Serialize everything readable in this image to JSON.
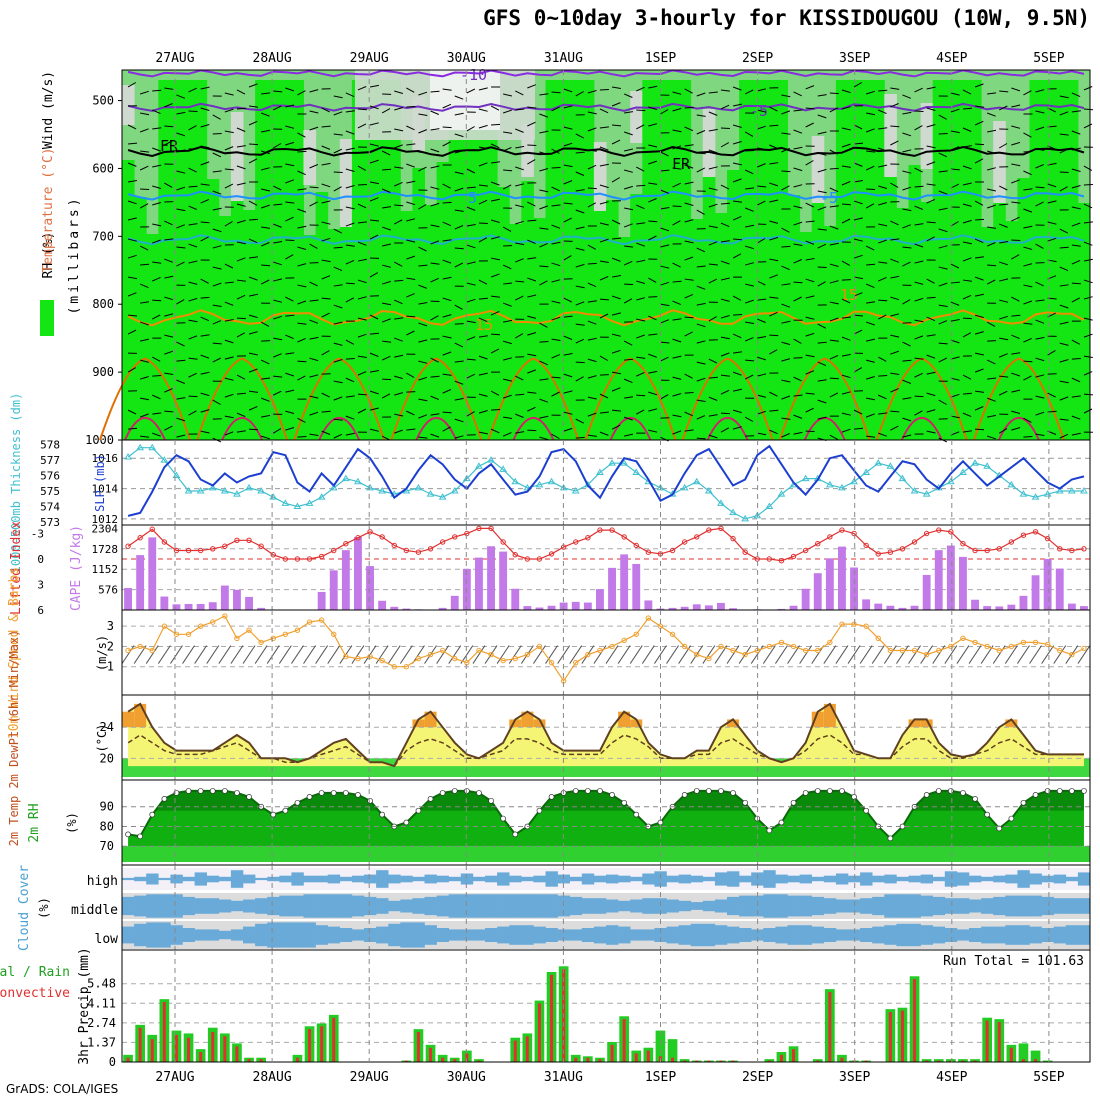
{
  "title": "GFS 0~10day 3-hourly for KISSIDOUGOU (10W, 9.5N)",
  "credit": "GrADS: COLA/IGES",
  "dates": [
    "27AUG",
    "28AUG",
    "29AUG",
    "30AUG",
    "31AUG",
    "1SEP",
    "2SEP",
    "3SEP",
    "4SEP",
    "5SEP"
  ],
  "colors": {
    "rh_light": "#cfd9cf",
    "rh_mid": "#7fd77f",
    "rh_green": "#14e614",
    "wind_lines": "#000000",
    "thickness": "#40c0d0",
    "slp": "#1c3fd0",
    "lifted": "#e03030",
    "cape": "#c27ae8",
    "wind10": "#f0a030",
    "temp_fill": "#f5f575",
    "temp_hot": "#f0a030",
    "dew_line": "#604020",
    "rh2m_dark": "#0a8a0a",
    "rh2m_mid": "#10b010",
    "rh2m_light": "#2fd02f",
    "cloud": "#6aaad8",
    "cloud_bg": "#dcdcdc",
    "total_rain": "#22cc22",
    "conv_rain": "#e03030"
  },
  "panels": {
    "upper": {
      "ylabel_parts": [
        "RH (%)",
        "Temperature (°C)",
        "Wind (m/s)"
      ],
      "ylabel_unit": "(millibars)",
      "yticks": [
        "500",
        "600",
        "700",
        "800",
        "900",
        "1000"
      ],
      "contour_labels": [
        "-10",
        "-5",
        "FR",
        "FR",
        "5",
        "-5",
        "15",
        "15"
      ]
    },
    "thickness_slp": {
      "ylabel_left": "1000-500mb Thickness (dm)",
      "ylabel_right": "SLP (mb)",
      "left_ticks": [
        "578",
        "577",
        "576",
        "575",
        "574",
        "573"
      ],
      "right_ticks": [
        "1016",
        "1014",
        "1012"
      ]
    },
    "li_cape": {
      "ylabel_left": "Lifted Index",
      "ylabel_right": "CAPE (J/kg)",
      "li_ticks": [
        "-3",
        "0",
        "3",
        "6"
      ],
      "cape_ticks": [
        "2304",
        "1728",
        "1152",
        "576"
      ]
    },
    "wind10": {
      "ylabel": "10m Wind Speed & Barbs",
      "unit": "(m/s)",
      "yticks": [
        "3",
        "2",
        "1"
      ]
    },
    "temp2m": {
      "ylabel": "2m Temp 2m DewPt (6hr Min/Max)",
      "unit": "(°C)",
      "yticks": [
        "24",
        "20"
      ]
    },
    "rh2m": {
      "ylabel": "2m RH",
      "unit": "(%)",
      "yticks": [
        "90",
        "80",
        "70"
      ]
    },
    "cloud": {
      "ylabel": "Cloud Cover",
      "unit": "(%)",
      "levels": [
        "high",
        "middle",
        "low"
      ]
    },
    "precip": {
      "ylabel": "3hr Precip (mm)",
      "legend_total": "Total / Rain",
      "legend_conv": "Convective",
      "yticks": [
        "5.48",
        "4.11",
        "2.74",
        "1.37",
        "0"
      ],
      "run_total": "Run Total = 101.63"
    }
  },
  "chart_data": {
    "type": "meteogram",
    "x_dates": [
      "27AUG",
      "28AUG",
      "29AUG",
      "30AUG",
      "31AUG",
      "1SEP",
      "2SEP",
      "3SEP",
      "4SEP",
      "5SEP"
    ],
    "slp_mb": [
      1012.2,
      1012.4,
      1013.8,
      1015.4,
      1016.2,
      1015.8,
      1014.6,
      1014.2,
      1015.0,
      1014.4,
      1014.8,
      1015.0,
      1016.4,
      1016.2,
      1014.4,
      1013.8,
      1015.0,
      1014.2,
      1015.4,
      1016.6,
      1016.0,
      1014.8,
      1013.4,
      1014.0,
      1015.2,
      1016.2,
      1015.6,
      1014.6,
      1014.0,
      1015.0,
      1015.6,
      1014.6,
      1013.6,
      1013.8,
      1014.8,
      1016.4,
      1016.6,
      1015.8,
      1014.2,
      1013.4,
      1014.8,
      1016.0,
      1015.8,
      1014.6,
      1013.2,
      1013.6,
      1015.0,
      1016.2,
      1016.6,
      1015.4,
      1014.2,
      1014.6,
      1016.2,
      1016.8,
      1015.6,
      1014.4,
      1013.6,
      1014.6,
      1016.0,
      1016.2,
      1015.2,
      1014.2,
      1013.8,
      1014.8,
      1015.8,
      1015.6,
      1014.6,
      1014.0,
      1015.0,
      1015.8,
      1015.0,
      1014.2,
      1014.8,
      1015.4,
      1016.0,
      1015.2,
      1014.4,
      1014.0,
      1014.6,
      1014.8
    ],
    "thickness_dm": [
      577.2,
      577.8,
      577.8,
      577.0,
      576.0,
      575.0,
      575.0,
      575.2,
      575.0,
      574.8,
      575.2,
      575.0,
      574.6,
      574.2,
      574.0,
      574.2,
      574.6,
      575.2,
      575.8,
      575.6,
      575.2,
      575.0,
      574.8,
      575.0,
      575.2,
      574.8,
      574.6,
      575.0,
      575.8,
      576.6,
      577.0,
      576.4,
      575.6,
      575.2,
      575.4,
      575.6,
      575.2,
      575.0,
      575.4,
      576.2,
      576.8,
      576.8,
      576.2,
      575.6,
      575.2,
      574.8,
      575.2,
      575.6,
      575.0,
      574.2,
      573.6,
      573.2,
      573.4,
      574.0,
      574.8,
      575.4,
      575.8,
      575.8,
      575.4,
      575.2,
      575.6,
      576.2,
      576.8,
      576.6,
      575.8,
      575.0,
      574.8,
      575.2,
      575.6,
      576.2,
      576.8,
      576.6,
      576.0,
      575.4,
      574.8,
      574.6,
      574.8,
      575.0,
      575.0,
      575.0
    ],
    "lifted_index": [
      -1.5,
      -2.5,
      -3.5,
      -2.0,
      -1.0,
      -1.0,
      -1.0,
      -1.2,
      -1.5,
      -2.2,
      -2.2,
      -1.5,
      -0.5,
      0.0,
      0.0,
      0.0,
      -0.3,
      -1.0,
      -1.8,
      -2.5,
      -3.2,
      -2.6,
      -1.6,
      -1.0,
      -0.8,
      -1.2,
      -2.0,
      -2.6,
      -3.0,
      -3.6,
      -3.6,
      -2.0,
      -0.5,
      0.0,
      0.0,
      -0.6,
      -1.4,
      -2.0,
      -2.5,
      -3.4,
      -3.4,
      -2.6,
      -1.6,
      -0.8,
      -0.6,
      -1.0,
      -2.0,
      -2.6,
      -3.4,
      -3.6,
      -2.4,
      -0.8,
      0.0,
      0.0,
      0.2,
      -0.3,
      -1.0,
      -1.8,
      -2.6,
      -3.4,
      -3.0,
      -1.6,
      -0.6,
      -0.8,
      -1.2,
      -2.0,
      -3.0,
      -3.4,
      -3.2,
      -1.8,
      -1.0,
      -1.0,
      -1.2,
      -2.0,
      -2.8,
      -3.2,
      -2.4,
      -1.2,
      -1.0,
      -1.2
    ],
    "cape_jkg": [
      620,
      1550,
      2050,
      380,
      160,
      170,
      170,
      220,
      690,
      570,
      370,
      60,
      10,
      10,
      10,
      0,
      510,
      1120,
      1690,
      2060,
      1240,
      260,
      90,
      40,
      20,
      0,
      60,
      400,
      1160,
      1480,
      1800,
      1650,
      600,
      110,
      70,
      120,
      210,
      230,
      210,
      590,
      1190,
      1570,
      1300,
      270,
      40,
      60,
      90,
      160,
      130,
      200,
      50,
      10,
      20,
      0,
      30,
      120,
      600,
      1040,
      1460,
      1790,
      1200,
      300,
      180,
      120,
      60,
      120,
      990,
      1690,
      1820,
      1500,
      290,
      110,
      100,
      150,
      400,
      980,
      1440,
      1170,
      180,
      110
    ],
    "wind10_ms": [
      1.8,
      2.0,
      1.8,
      3.0,
      2.6,
      2.6,
      3.0,
      3.2,
      3.5,
      2.4,
      2.8,
      2.2,
      2.4,
      2.6,
      2.8,
      3.2,
      3.3,
      2.6,
      1.5,
      1.4,
      1.5,
      1.3,
      1.0,
      1.0,
      1.4,
      1.6,
      1.8,
      1.4,
      1.2,
      1.8,
      1.6,
      1.3,
      1.4,
      1.6,
      2.0,
      1.2,
      0.3,
      1.2,
      1.6,
      1.8,
      2.0,
      2.3,
      2.6,
      3.4,
      3.0,
      2.6,
      2.0,
      1.6,
      1.4,
      2.0,
      1.8,
      1.6,
      1.8,
      2.0,
      2.2,
      2.0,
      1.8,
      1.8,
      2.2,
      3.1,
      3.1,
      3.0,
      2.4,
      1.8,
      1.8,
      1.8,
      1.6,
      1.8,
      2.0,
      2.4,
      2.2,
      2.0,
      1.8,
      2.0,
      2.2,
      2.2,
      2.1,
      1.8,
      1.6,
      1.9
    ],
    "temp2m_c": [
      26,
      27,
      24,
      22,
      21,
      21,
      21,
      21,
      22,
      23,
      22,
      20,
      20,
      20,
      19.5,
      20,
      21,
      22,
      22.5,
      21,
      19.5,
      19.5,
      19,
      22,
      25,
      26,
      24,
      22,
      20.5,
      20,
      21,
      22,
      25,
      26,
      25,
      22,
      21,
      21,
      21,
      21,
      24,
      26,
      25,
      22,
      20.5,
      20,
      20,
      21,
      21,
      24,
      25,
      23,
      21,
      20,
      19.5,
      20,
      22,
      26,
      27,
      24,
      21,
      20.5,
      20,
      20,
      23,
      25,
      25,
      22,
      20.5,
      20.2,
      20.5,
      22,
      24,
      25,
      23,
      21,
      20.5,
      20.5,
      20.5,
      20.5
    ],
    "dewpt2m_c": [
      22,
      23,
      22,
      21,
      20.5,
      20.5,
      20.5,
      21,
      21.5,
      22,
      21,
      20,
      20,
      19.5,
      19.5,
      20,
      20.5,
      21,
      21.5,
      20.5,
      19.5,
      19.5,
      19,
      21,
      22,
      22.5,
      22,
      21,
      20,
      20,
      20.5,
      21,
      22.5,
      22.5,
      22,
      21,
      20.5,
      20.5,
      20.5,
      20.5,
      22,
      23,
      22.5,
      21.5,
      20,
      20,
      20,
      20.5,
      20.5,
      22,
      22.5,
      21.5,
      20.5,
      20,
      19.5,
      20,
      21,
      22.5,
      23,
      22,
      20.5,
      20.5,
      20,
      20,
      21.5,
      22.5,
      22.5,
      21,
      20,
      20,
      20.5,
      21,
      22,
      22.5,
      21.5,
      20.5,
      20.5,
      20.5,
      20.5,
      20.5
    ],
    "rh2m_pct": [
      76,
      75,
      86,
      94,
      97,
      98,
      98,
      98,
      98,
      97,
      95,
      90,
      86,
      88,
      92,
      95,
      97,
      97,
      97,
      96,
      93,
      86,
      80,
      82,
      88,
      94,
      97,
      98,
      98,
      97,
      93,
      84,
      76,
      80,
      88,
      95,
      97,
      98,
      98,
      98,
      96,
      92,
      86,
      80,
      82,
      90,
      96,
      98,
      98,
      98,
      97,
      92,
      84,
      78,
      82,
      92,
      97,
      98,
      98,
      98,
      95,
      88,
      80,
      74,
      80,
      90,
      96,
      98,
      98,
      97,
      94,
      86,
      79,
      84,
      92,
      96,
      98,
      98,
      98,
      98
    ],
    "precip_total_mm": [
      0.5,
      2.6,
      1.9,
      4.4,
      2.2,
      2.0,
      0.9,
      2.4,
      2.0,
      1.3,
      0.3,
      0.3,
      0,
      0,
      0.5,
      2.5,
      2.7,
      3.3,
      0,
      0,
      0,
      0,
      0,
      0.1,
      2.3,
      1.2,
      0.5,
      0.3,
      0.8,
      0.2,
      0,
      0,
      1.7,
      2.0,
      4.3,
      6.3,
      6.7,
      0.5,
      0.4,
      0.3,
      1.4,
      3.2,
      0.8,
      1.0,
      2.2,
      1.6,
      0.2,
      0.1,
      0.1,
      0.1,
      0.1,
      0,
      0,
      0.2,
      0.7,
      1.1,
      0,
      0.2,
      5.1,
      0.5,
      0.1,
      0.1,
      0,
      3.7,
      3.8,
      6.0,
      0.2,
      0.2,
      0.2,
      0.2,
      0.2,
      3.1,
      3.0,
      1.2,
      1.3,
      0.8,
      0.1,
      0,
      0,
      0
    ],
    "precip_conv_mm": [
      0.3,
      2.4,
      1.6,
      4.2,
      1.9,
      1.7,
      0.7,
      2.1,
      1.8,
      1.1,
      0.2,
      0.2,
      0,
      0,
      0.3,
      2.3,
      2.5,
      3.1,
      0,
      0,
      0,
      0,
      0,
      0.1,
      2.1,
      1.0,
      0.3,
      0.2,
      0.6,
      0.1,
      0,
      0,
      1.5,
      1.8,
      4.1,
      6.1,
      6.5,
      0.3,
      0.3,
      0.2,
      1.2,
      3.0,
      0.6,
      0.8,
      0.4,
      0.3,
      0.1,
      0.1,
      0.1,
      0.1,
      0.1,
      0,
      0,
      0.1,
      0.5,
      0.9,
      0,
      0.1,
      4.9,
      0.3,
      0.1,
      0.1,
      0,
      3.5,
      3.6,
      5.8,
      0.1,
      0.1,
      0.1,
      0.1,
      0.1,
      2.9,
      2.8,
      1.0,
      0.2,
      0.2,
      0,
      0,
      0,
      0
    ],
    "cloud_high_pct": [
      10,
      20,
      50,
      10,
      40,
      20,
      60,
      30,
      20,
      80,
      40,
      10,
      20,
      30,
      60,
      30,
      30,
      40,
      20,
      30,
      40,
      80,
      40,
      30,
      20,
      40,
      30,
      20,
      50,
      20,
      30,
      60,
      30,
      20,
      30,
      70,
      40,
      20,
      50,
      30,
      40,
      30,
      20,
      50,
      70,
      30,
      40,
      30,
      20,
      60,
      70,
      30,
      60,
      80,
      40,
      30,
      40,
      20,
      30,
      50,
      30,
      60,
      30,
      40,
      20,
      30,
      40,
      20,
      70,
      60,
      30,
      20,
      30,
      40,
      80,
      50,
      30,
      40,
      20,
      60
    ],
    "cloud_mid_pct": [
      70,
      80,
      90,
      90,
      90,
      70,
      60,
      60,
      50,
      40,
      50,
      60,
      70,
      80,
      80,
      90,
      90,
      90,
      90,
      80,
      70,
      60,
      40,
      50,
      60,
      70,
      80,
      90,
      90,
      90,
      90,
      90,
      90,
      90,
      90,
      90,
      80,
      70,
      60,
      60,
      50,
      40,
      50,
      60,
      60,
      50,
      40,
      30,
      40,
      50,
      70,
      80,
      80,
      90,
      90,
      80,
      80,
      70,
      60,
      50,
      50,
      60,
      70,
      90,
      90,
      90,
      80,
      70,
      60,
      60,
      50,
      60,
      70,
      80,
      80,
      80,
      70,
      60,
      60,
      60
    ],
    "cloud_low_pct": [
      60,
      80,
      90,
      90,
      70,
      50,
      40,
      40,
      30,
      40,
      60,
      80,
      90,
      90,
      90,
      90,
      70,
      60,
      50,
      40,
      50,
      60,
      80,
      90,
      90,
      70,
      50,
      40,
      40,
      40,
      50,
      60,
      70,
      70,
      60,
      50,
      40,
      40,
      50,
      60,
      70,
      60,
      40,
      40,
      50,
      60,
      70,
      80,
      80,
      70,
      60,
      50,
      40,
      50,
      60,
      70,
      70,
      60,
      50,
      40,
      40,
      50,
      60,
      70,
      80,
      80,
      70,
      60,
      50,
      40,
      50,
      60,
      60,
      70,
      70,
      60,
      50,
      60,
      70,
      70
    ]
  }
}
